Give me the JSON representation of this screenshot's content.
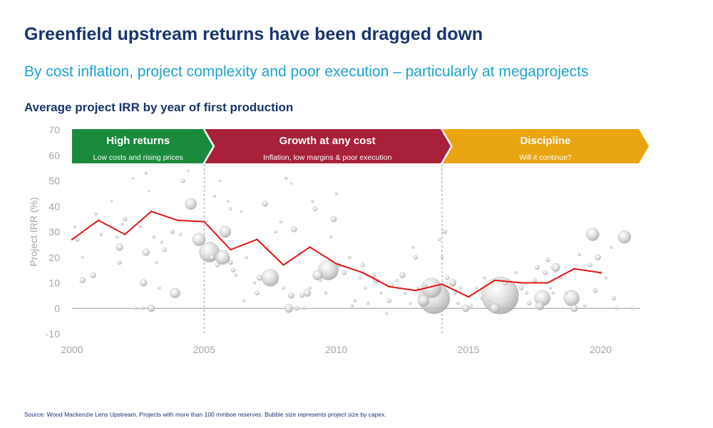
{
  "header": {
    "title": "Greenfield upstream returns have been dragged down",
    "subtitle": "By cost inflation, project complexity and poor execution – particularly at megaprojects",
    "chart_title": "Average project IRR by year of first production"
  },
  "footer": {
    "source": "Source: Wood Mackenzie Lens Upstream, Projects with more than 100 mmboe reserves. Bubble size represents project size by capex."
  },
  "phases": [
    {
      "title": "High returns",
      "subtitle": "Low costs and rising prices",
      "color": "#1a8a3c",
      "start": 2000,
      "end": 2005
    },
    {
      "title": "Growth at any cost",
      "subtitle": "Inflation, low margins & poor execution",
      "color": "#a8203a",
      "start": 2005,
      "end": 2014
    },
    {
      "title": "Discipline",
      "subtitle": "Will it continue?",
      "color": "#e8a511",
      "start": 2014,
      "end": 2021.5
    }
  ],
  "chart_data": {
    "type": "line",
    "title": "Average project IRR by year of first production",
    "xlabel": "",
    "ylabel": "Project IRR (%)",
    "xlim": [
      2000,
      2021.5
    ],
    "ylim": [
      -10,
      70
    ],
    "x_ticks": [
      2000,
      2005,
      2010,
      2015,
      2020
    ],
    "y_ticks": [
      -10,
      0,
      10,
      20,
      30,
      40,
      50,
      60,
      70
    ],
    "phase_dividers": [
      2005,
      2014
    ],
    "line_color": "#e01414",
    "series": [
      {
        "x": [
          2000,
          2001,
          2002,
          2003,
          2004,
          2005,
          2006,
          2007,
          2008,
          2009,
          2010,
          2011,
          2012,
          2013,
          2014,
          2015,
          2016,
          2017,
          2018,
          2019,
          2020
        ],
        "values": [
          27,
          34.5,
          29,
          38,
          34.5,
          34,
          23,
          27,
          17,
          24,
          17.5,
          14,
          8.5,
          7,
          9.5,
          4.5,
          11,
          10,
          10,
          15.5,
          14
        ]
      }
    ],
    "bubbles": [
      {
        "x": 2000.1,
        "y": 32,
        "s": 2
      },
      {
        "x": 2000.2,
        "y": 27,
        "s": 3
      },
      {
        "x": 2000.4,
        "y": 20,
        "s": 1.5
      },
      {
        "x": 2000.4,
        "y": 11,
        "s": 4
      },
      {
        "x": 2000.8,
        "y": 13,
        "s": 4
      },
      {
        "x": 2000.9,
        "y": 37,
        "s": 2
      },
      {
        "x": 2001.1,
        "y": 29,
        "s": 2
      },
      {
        "x": 2001.5,
        "y": 42,
        "s": 1.5
      },
      {
        "x": 2001.7,
        "y": 28,
        "s": 2
      },
      {
        "x": 2001.8,
        "y": 24,
        "s": 5
      },
      {
        "x": 2001.8,
        "y": 18,
        "s": 3
      },
      {
        "x": 2001.9,
        "y": 33,
        "s": 2
      },
      {
        "x": 2002.0,
        "y": 35,
        "s": 3
      },
      {
        "x": 2002.3,
        "y": 51,
        "s": 1.5
      },
      {
        "x": 2002.4,
        "y": 0,
        "s": 2
      },
      {
        "x": 2002.6,
        "y": 32,
        "s": 2
      },
      {
        "x": 2002.7,
        "y": 0,
        "s": 2
      },
      {
        "x": 2002.7,
        "y": 10,
        "s": 5
      },
      {
        "x": 2002.8,
        "y": 22,
        "s": 5
      },
      {
        "x": 2002.8,
        "y": 53,
        "s": 2
      },
      {
        "x": 2002.9,
        "y": 46,
        "s": 1.5
      },
      {
        "x": 2003.0,
        "y": 0,
        "s": 5
      },
      {
        "x": 2003.1,
        "y": 28,
        "s": 2
      },
      {
        "x": 2003.2,
        "y": 18,
        "s": 2
      },
      {
        "x": 2003.3,
        "y": 8,
        "s": 2
      },
      {
        "x": 2003.4,
        "y": 26,
        "s": 2
      },
      {
        "x": 2003.5,
        "y": 23,
        "s": 3
      },
      {
        "x": 2003.8,
        "y": 30,
        "s": 3
      },
      {
        "x": 2003.9,
        "y": 6,
        "s": 7
      },
      {
        "x": 2004.1,
        "y": 29,
        "s": 2
      },
      {
        "x": 2004.2,
        "y": 50,
        "s": 3
      },
      {
        "x": 2004.4,
        "y": 54,
        "s": 1.5
      },
      {
        "x": 2004.5,
        "y": 41,
        "s": 8
      },
      {
        "x": 2004.8,
        "y": 27,
        "s": 9
      },
      {
        "x": 2005.2,
        "y": 22,
        "s": 14
      },
      {
        "x": 2005.3,
        "y": 20,
        "s": 4
      },
      {
        "x": 2005.4,
        "y": 44,
        "s": 2
      },
      {
        "x": 2005.5,
        "y": 17,
        "s": 3
      },
      {
        "x": 2005.6,
        "y": 50,
        "s": 1.5
      },
      {
        "x": 2005.7,
        "y": 20,
        "s": 10
      },
      {
        "x": 2005.8,
        "y": 30,
        "s": 8
      },
      {
        "x": 2005.9,
        "y": 42,
        "s": 1.5
      },
      {
        "x": 2006.0,
        "y": 39,
        "s": 2
      },
      {
        "x": 2006.0,
        "y": 18,
        "s": 3
      },
      {
        "x": 2006.1,
        "y": 15,
        "s": 3
      },
      {
        "x": 2006.2,
        "y": 13,
        "s": 2
      },
      {
        "x": 2006.4,
        "y": 38,
        "s": 1.5
      },
      {
        "x": 2006.5,
        "y": 3,
        "s": 2
      },
      {
        "x": 2006.6,
        "y": 20,
        "s": 2
      },
      {
        "x": 2006.9,
        "y": 10,
        "s": 2
      },
      {
        "x": 2007.0,
        "y": 6,
        "s": 3
      },
      {
        "x": 2007.1,
        "y": 12,
        "s": 4
      },
      {
        "x": 2007.3,
        "y": 41,
        "s": 4
      },
      {
        "x": 2007.4,
        "y": 24,
        "s": 2
      },
      {
        "x": 2007.5,
        "y": 12,
        "s": 12
      },
      {
        "x": 2007.7,
        "y": 30,
        "s": 2
      },
      {
        "x": 2007.9,
        "y": 34,
        "s": 2
      },
      {
        "x": 2008.0,
        "y": 8,
        "s": 2
      },
      {
        "x": 2008.1,
        "y": 51,
        "s": 2
      },
      {
        "x": 2008.2,
        "y": 0,
        "s": 6
      },
      {
        "x": 2008.3,
        "y": 5,
        "s": 4
      },
      {
        "x": 2008.3,
        "y": 49,
        "s": 1.5
      },
      {
        "x": 2008.4,
        "y": 31,
        "s": 4
      },
      {
        "x": 2008.5,
        "y": 0,
        "s": 3
      },
      {
        "x": 2008.6,
        "y": 22,
        "s": 2
      },
      {
        "x": 2008.7,
        "y": 5,
        "s": 3
      },
      {
        "x": 2008.8,
        "y": 0,
        "s": 2
      },
      {
        "x": 2008.9,
        "y": 6,
        "s": 5
      },
      {
        "x": 2009.0,
        "y": 8,
        "s": 2
      },
      {
        "x": 2009.1,
        "y": 42,
        "s": 2
      },
      {
        "x": 2009.2,
        "y": 39,
        "s": 3
      },
      {
        "x": 2009.3,
        "y": 13,
        "s": 7
      },
      {
        "x": 2009.4,
        "y": 11,
        "s": 2
      },
      {
        "x": 2009.6,
        "y": 6,
        "s": 2
      },
      {
        "x": 2009.7,
        "y": 15,
        "s": 14
      },
      {
        "x": 2009.8,
        "y": 28,
        "s": 2
      },
      {
        "x": 2009.9,
        "y": 35,
        "s": 4
      },
      {
        "x": 2010.0,
        "y": 45,
        "s": 2
      },
      {
        "x": 2010.1,
        "y": 17,
        "s": 3
      },
      {
        "x": 2010.3,
        "y": 14,
        "s": 3
      },
      {
        "x": 2010.5,
        "y": 20,
        "s": 2
      },
      {
        "x": 2010.6,
        "y": 1,
        "s": 2
      },
      {
        "x": 2010.7,
        "y": 3,
        "s": 2
      },
      {
        "x": 2010.9,
        "y": 12,
        "s": 2
      },
      {
        "x": 2011.0,
        "y": 17,
        "s": 3
      },
      {
        "x": 2011.1,
        "y": 8,
        "s": 2
      },
      {
        "x": 2011.2,
        "y": 2,
        "s": 2
      },
      {
        "x": 2011.4,
        "y": 13,
        "s": 3
      },
      {
        "x": 2011.5,
        "y": 11,
        "s": 4
      },
      {
        "x": 2011.7,
        "y": 6,
        "s": 2
      },
      {
        "x": 2011.9,
        "y": -2,
        "s": 2
      },
      {
        "x": 2012.0,
        "y": 3,
        "s": 3
      },
      {
        "x": 2012.1,
        "y": 9,
        "s": 3
      },
      {
        "x": 2012.3,
        "y": 11,
        "s": 2
      },
      {
        "x": 2012.5,
        "y": 13,
        "s": 4
      },
      {
        "x": 2012.6,
        "y": 6,
        "s": 2
      },
      {
        "x": 2012.8,
        "y": 2,
        "s": 2
      },
      {
        "x": 2012.9,
        "y": 24,
        "s": 2
      },
      {
        "x": 2013.0,
        "y": 20,
        "s": 3
      },
      {
        "x": 2013.1,
        "y": 8,
        "s": 2
      },
      {
        "x": 2013.3,
        "y": 3,
        "s": 8
      },
      {
        "x": 2013.4,
        "y": 9,
        "s": 2
      },
      {
        "x": 2013.6,
        "y": 8,
        "s": 14
      },
      {
        "x": 2013.7,
        "y": 4,
        "s": 22
      },
      {
        "x": 2013.9,
        "y": 27,
        "s": 2
      },
      {
        "x": 2014.0,
        "y": 20,
        "s": 2
      },
      {
        "x": 2014.1,
        "y": 30,
        "s": 3
      },
      {
        "x": 2014.2,
        "y": 12,
        "s": 3
      },
      {
        "x": 2014.4,
        "y": 10,
        "s": 5
      },
      {
        "x": 2014.5,
        "y": 6,
        "s": 2
      },
      {
        "x": 2014.6,
        "y": 2,
        "s": 2
      },
      {
        "x": 2014.7,
        "y": 8,
        "s": 2
      },
      {
        "x": 2014.9,
        "y": 0,
        "s": 5
      },
      {
        "x": 2015.1,
        "y": 1,
        "s": 2
      },
      {
        "x": 2015.3,
        "y": 8,
        "s": 2
      },
      {
        "x": 2015.5,
        "y": 4,
        "s": 2
      },
      {
        "x": 2015.6,
        "y": 12,
        "s": 2
      },
      {
        "x": 2015.8,
        "y": 3,
        "s": 2
      },
      {
        "x": 2016.0,
        "y": 0,
        "s": 7
      },
      {
        "x": 2016.2,
        "y": 5,
        "s": 26
      },
      {
        "x": 2016.4,
        "y": 10,
        "s": 3
      },
      {
        "x": 2016.6,
        "y": 3,
        "s": 2
      },
      {
        "x": 2016.8,
        "y": 14,
        "s": 2
      },
      {
        "x": 2017.0,
        "y": 8,
        "s": 3
      },
      {
        "x": 2017.2,
        "y": 6,
        "s": 2
      },
      {
        "x": 2017.3,
        "y": 2,
        "s": 3
      },
      {
        "x": 2017.5,
        "y": 11,
        "s": 3
      },
      {
        "x": 2017.6,
        "y": 16,
        "s": 3
      },
      {
        "x": 2017.7,
        "y": 1,
        "s": 6
      },
      {
        "x": 2017.8,
        "y": 4,
        "s": 11
      },
      {
        "x": 2017.9,
        "y": 14,
        "s": 3
      },
      {
        "x": 2018.0,
        "y": 19,
        "s": 3
      },
      {
        "x": 2018.1,
        "y": 8,
        "s": 2
      },
      {
        "x": 2018.2,
        "y": 6,
        "s": 2
      },
      {
        "x": 2018.3,
        "y": 16,
        "s": 6
      },
      {
        "x": 2018.5,
        "y": 12,
        "s": 2
      },
      {
        "x": 2018.7,
        "y": 6,
        "s": 2
      },
      {
        "x": 2018.9,
        "y": 4,
        "s": 11
      },
      {
        "x": 2019.0,
        "y": 0,
        "s": 5
      },
      {
        "x": 2019.2,
        "y": 21,
        "s": 2
      },
      {
        "x": 2019.4,
        "y": 1,
        "s": 2
      },
      {
        "x": 2019.6,
        "y": 17,
        "s": 3
      },
      {
        "x": 2019.8,
        "y": 7,
        "s": 3
      },
      {
        "x": 2019.9,
        "y": 20,
        "s": 4
      },
      {
        "x": 2020.0,
        "y": 14,
        "s": 2
      },
      {
        "x": 2020.2,
        "y": 12,
        "s": 2
      },
      {
        "x": 2019.7,
        "y": 29,
        "s": 9
      },
      {
        "x": 2020.4,
        "y": 24,
        "s": 2
      },
      {
        "x": 2020.5,
        "y": 4,
        "s": 3
      },
      {
        "x": 2020.6,
        "y": 0,
        "s": 2
      },
      {
        "x": 2020.9,
        "y": 28,
        "s": 9
      },
      {
        "x": 2021.2,
        "y": 0,
        "s": 2
      }
    ]
  }
}
